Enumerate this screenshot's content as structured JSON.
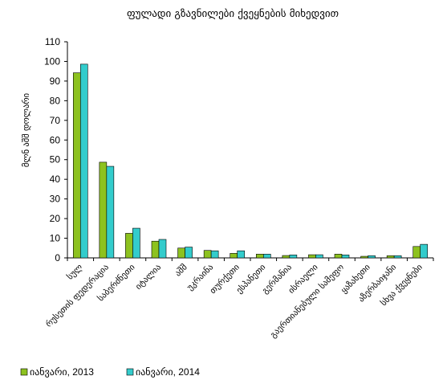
{
  "chart_data": {
    "type": "bar",
    "title": "ფულადი გზავნილები ქვეყნების მიხედვით",
    "ylabel": "მლნ აშშ დოლარი",
    "xlabel": "",
    "ylim": [
      0,
      110
    ],
    "yticks": [
      0,
      10,
      20,
      30,
      40,
      50,
      60,
      70,
      80,
      90,
      100,
      110
    ],
    "grid": false,
    "legend_position": "bottom-left",
    "categories": [
      "სულ",
      "რუსეთის ფედერაცია",
      "საბერძნეთი",
      "იტალია",
      "აშშ",
      "უკრაინა",
      "თურქეთი",
      "ესპანეთი",
      "გერმანია",
      "ისრაელი",
      "გაერთიანებული სამეფო",
      "ყაზახეთი",
      "აზერბაიჯანი",
      "სხვა ქვეყნები"
    ],
    "series": [
      {
        "name": "იანვარი, 2013",
        "color": "#8dc21f",
        "values": [
          94.2,
          48.7,
          12.5,
          8.5,
          5.0,
          3.8,
          2.3,
          1.9,
          1.2,
          1.6,
          1.9,
          0.8,
          1.1,
          5.8
        ]
      },
      {
        "name": "იანვარი, 2014",
        "color": "#33cccc",
        "values": [
          98.6,
          46.6,
          15.1,
          9.4,
          5.5,
          3.6,
          3.6,
          1.9,
          1.5,
          1.6,
          1.5,
          1.1,
          1.1,
          6.9
        ]
      }
    ]
  }
}
